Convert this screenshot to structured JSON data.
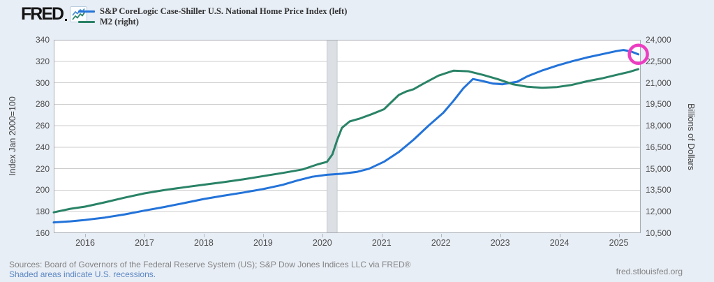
{
  "header": {
    "logo_text": "FRED",
    "legend": [
      {
        "label": "S&P CoreLogic Case-Shiller U.S. National Home Price Index (left)",
        "color": "#2373d9"
      },
      {
        "label": "M2 (right)",
        "color": "#2a8367"
      }
    ]
  },
  "footer": {
    "sources": "Sources: Board of Governors of the Federal Reserve System (US); S&P Dow Jones Indices LLC via FRED®",
    "recession_note": "Shaded areas indicate U.S. recessions.",
    "site": "fred.stlouisfed.org"
  },
  "colors": {
    "page_bg": "#e8eef6",
    "plot_bg": "#ffffff",
    "grid": "#cdcdcd",
    "plot_border": "#a6abb1",
    "recession_band": "#dce0e5",
    "recession_band_edge": "#c3c8ce",
    "blue_series": "#2373d9",
    "green_series": "#2a8367",
    "annotation_pink": "#ec3dc1"
  },
  "chart_data": {
    "type": "line",
    "grid": "horizontal",
    "legend_position": "top",
    "x_axis": {
      "xlim": [
        2015.47,
        2025.37
      ],
      "tick_years": [
        2016,
        2017,
        2018,
        2019,
        2020,
        2021,
        2022,
        2023,
        2024,
        2025
      ],
      "tick_labels": [
        "2016",
        "2017",
        "2018",
        "2019",
        "2020",
        "2021",
        "2022",
        "2023",
        "2024",
        "2025"
      ]
    },
    "left_axis": {
      "title": "Index Jan 2000=100",
      "ylim": [
        160,
        340
      ],
      "tick_labels": [
        "340",
        "320",
        "300",
        "280",
        "260",
        "240",
        "220",
        "200",
        "180",
        "160"
      ]
    },
    "right_axis": {
      "title": "Billions of Dollars",
      "ylim": [
        10500,
        24000
      ],
      "tick_labels": [
        "24,000",
        "22,500",
        "21,000",
        "19,500",
        "18,000",
        "16,500",
        "15,000",
        "13,500",
        "12,000",
        "10,500"
      ]
    },
    "recession_bands": [
      {
        "start": 2020.08,
        "end": 2020.25
      }
    ],
    "series": [
      {
        "name": "S&P CoreLogic Case-Shiller U.S. National Home Price Index (left)",
        "axis": "left",
        "color": "#2373d9",
        "points": [
          [
            2015.47,
            170
          ],
          [
            2015.75,
            171
          ],
          [
            2016,
            172.3
          ],
          [
            2016.33,
            174.5
          ],
          [
            2016.67,
            177.5
          ],
          [
            2017,
            181
          ],
          [
            2017.33,
            184.3
          ],
          [
            2017.67,
            188
          ],
          [
            2018,
            191.8
          ],
          [
            2018.33,
            194.8
          ],
          [
            2018.67,
            197.8
          ],
          [
            2019,
            201
          ],
          [
            2019.33,
            205
          ],
          [
            2019.58,
            209
          ],
          [
            2019.83,
            212.5
          ],
          [
            2020.08,
            214.3
          ],
          [
            2020.33,
            215.3
          ],
          [
            2020.58,
            217
          ],
          [
            2020.79,
            220
          ],
          [
            2021.04,
            226.5
          ],
          [
            2021.29,
            235.5
          ],
          [
            2021.54,
            247
          ],
          [
            2021.79,
            260
          ],
          [
            2022.04,
            272
          ],
          [
            2022.21,
            283
          ],
          [
            2022.38,
            295
          ],
          [
            2022.54,
            303.5
          ],
          [
            2022.71,
            301.5
          ],
          [
            2022.88,
            299.2
          ],
          [
            2023.04,
            298.6
          ],
          [
            2023.29,
            301
          ],
          [
            2023.46,
            306
          ],
          [
            2023.71,
            311.5
          ],
          [
            2023.96,
            316
          ],
          [
            2024.21,
            320
          ],
          [
            2024.46,
            323.5
          ],
          [
            2024.71,
            326.5
          ],
          [
            2024.96,
            329.5
          ],
          [
            2025.08,
            330.5
          ],
          [
            2025.21,
            329
          ],
          [
            2025.33,
            326.5
          ]
        ]
      },
      {
        "name": "M2 (right)",
        "axis": "right",
        "color": "#2a8367",
        "points": [
          [
            2015.47,
            11950
          ],
          [
            2015.75,
            12200
          ],
          [
            2016,
            12350
          ],
          [
            2016.33,
            12650
          ],
          [
            2016.67,
            12980
          ],
          [
            2017,
            13280
          ],
          [
            2017.33,
            13500
          ],
          [
            2017.67,
            13700
          ],
          [
            2018,
            13880
          ],
          [
            2018.33,
            14060
          ],
          [
            2018.67,
            14260
          ],
          [
            2019,
            14480
          ],
          [
            2019.33,
            14700
          ],
          [
            2019.67,
            14950
          ],
          [
            2019.92,
            15300
          ],
          [
            2020.08,
            15480
          ],
          [
            2020.17,
            16000
          ],
          [
            2020.25,
            17000
          ],
          [
            2020.33,
            17850
          ],
          [
            2020.46,
            18300
          ],
          [
            2020.63,
            18500
          ],
          [
            2020.83,
            18800
          ],
          [
            2021.04,
            19150
          ],
          [
            2021.29,
            20150
          ],
          [
            2021.42,
            20400
          ],
          [
            2021.54,
            20550
          ],
          [
            2021.71,
            20950
          ],
          [
            2021.96,
            21500
          ],
          [
            2022.21,
            21840
          ],
          [
            2022.46,
            21800
          ],
          [
            2022.71,
            21550
          ],
          [
            2022.96,
            21250
          ],
          [
            2023.21,
            20900
          ],
          [
            2023.46,
            20720
          ],
          [
            2023.71,
            20650
          ],
          [
            2023.96,
            20700
          ],
          [
            2024.21,
            20850
          ],
          [
            2024.46,
            21100
          ],
          [
            2024.71,
            21300
          ],
          [
            2024.96,
            21550
          ],
          [
            2025.17,
            21750
          ],
          [
            2025.33,
            21950
          ]
        ]
      }
    ],
    "annotation": {
      "shape": "circle",
      "axis": "left",
      "t": 2025.33,
      "value": 326.5,
      "color": "#ec3dc1"
    }
  }
}
